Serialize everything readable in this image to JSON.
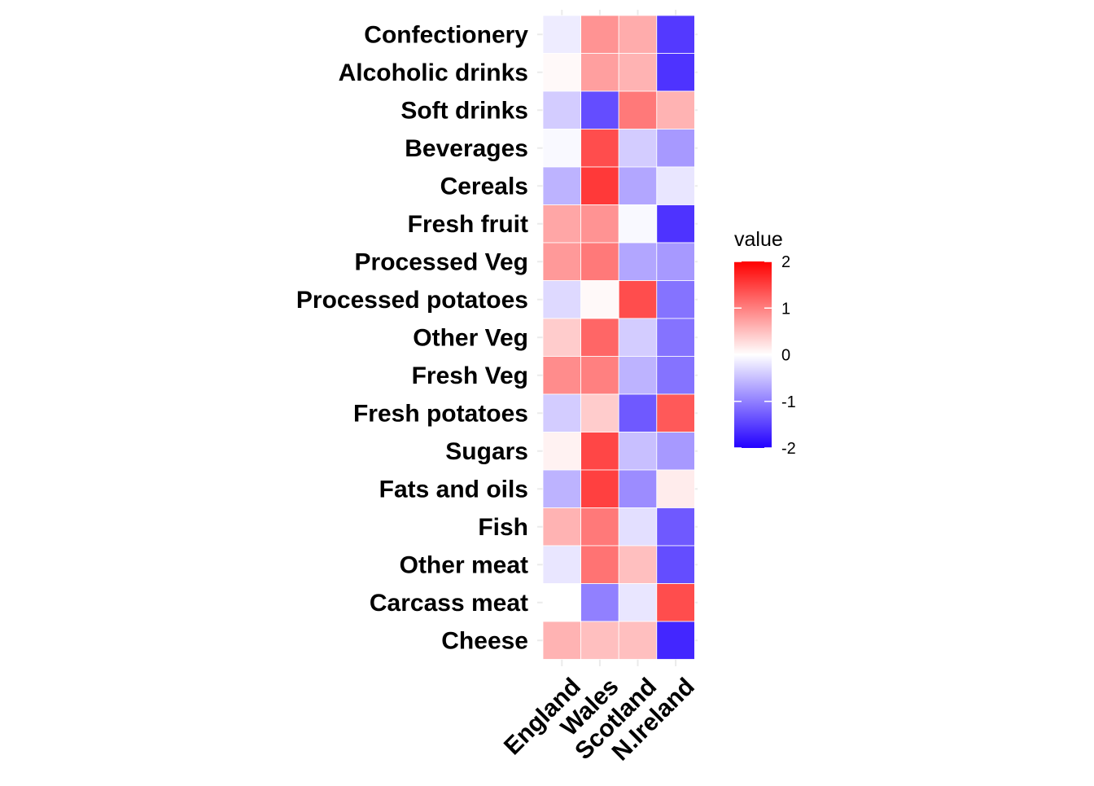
{
  "chart_data": {
    "type": "heatmap",
    "title": "",
    "xlabel": "",
    "ylabel": "",
    "columns": [
      "England",
      "Wales",
      "Scotland",
      "N.Ireland"
    ],
    "rows": [
      "Confectionery",
      "Alcoholic drinks",
      "Soft drinks",
      "Beverages",
      "Cereals",
      "Fresh fruit",
      "Processed Veg",
      "Processed potatoes",
      "Other Veg",
      "Fresh Veg",
      "Fresh potatoes",
      "Sugars",
      "Fats and oils",
      "Fish",
      "Other meat",
      "Carcass meat",
      "Cheese"
    ],
    "values": [
      [
        -0.15,
        0.85,
        0.65,
        -1.55
      ],
      [
        0.05,
        0.75,
        0.6,
        -1.6
      ],
      [
        -0.4,
        -1.4,
        1.05,
        0.6
      ],
      [
        -0.05,
        1.4,
        -0.4,
        -0.8
      ],
      [
        -0.6,
        1.55,
        -0.7,
        -0.2
      ],
      [
        0.7,
        0.85,
        -0.05,
        -1.6
      ],
      [
        0.8,
        1.05,
        -0.7,
        -0.8
      ],
      [
        -0.3,
        0.05,
        1.4,
        -1.1
      ],
      [
        0.4,
        1.2,
        -0.4,
        -1.1
      ],
      [
        0.9,
        1.0,
        -0.6,
        -1.1
      ],
      [
        -0.4,
        0.4,
        -1.3,
        1.3
      ],
      [
        0.1,
        1.45,
        -0.5,
        -0.8
      ],
      [
        -0.6,
        1.5,
        -0.9,
        0.15
      ],
      [
        0.6,
        1.05,
        -0.25,
        -1.3
      ],
      [
        -0.2,
        1.1,
        0.5,
        -1.4
      ],
      [
        0.0,
        -1.0,
        -0.2,
        1.4
      ],
      [
        0.6,
        0.5,
        0.5,
        -1.7
      ]
    ],
    "legend": {
      "title": "value",
      "position": "right",
      "ticks": [
        2,
        1,
        0,
        -1,
        -2
      ],
      "range": [
        -2,
        2
      ]
    },
    "colors": {
      "low": "#2200ff",
      "mid": "#ffffff",
      "high": "#ff0000",
      "grid": "#ebebeb",
      "tile_border": "#ffffff"
    },
    "grid": true
  }
}
